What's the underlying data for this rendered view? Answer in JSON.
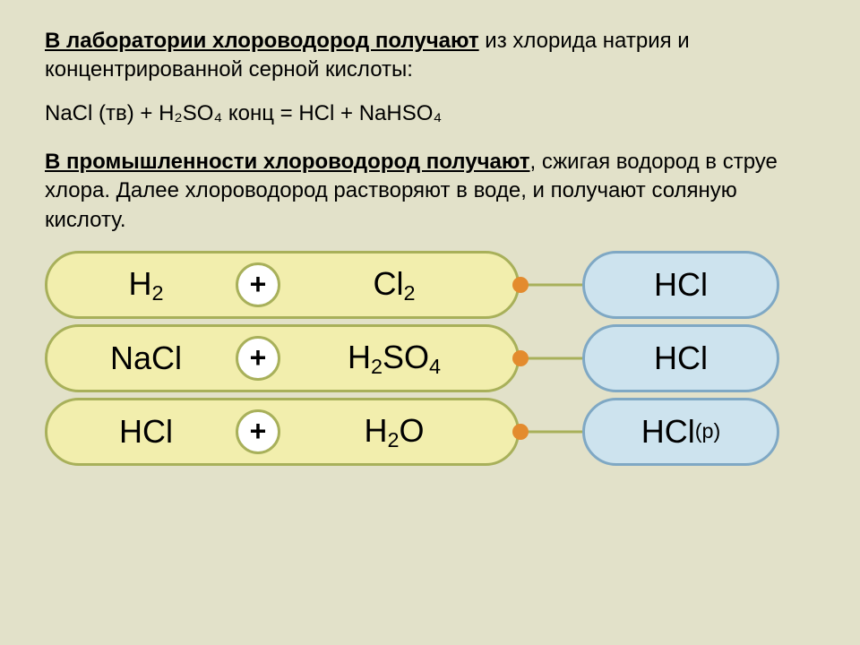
{
  "colors": {
    "slide_bg": "#e2e1c9",
    "text": "#000000",
    "pill_yellow_fill": "#f2eead",
    "pill_yellow_border": "#a8b05a",
    "pill_blue_fill": "#cde3ee",
    "pill_blue_border": "#7fa8c4",
    "plus_fill": "#ffffff",
    "plus_border": "#a8b05a",
    "connector": "#a8b05a",
    "dot": "#e38b2e",
    "arrow": "#7fa8c4"
  },
  "para1": {
    "lead_bold": "В лаборатории хлороводород получают",
    "rest": " из хлорида натрия и концентрированной серной кислоты:"
  },
  "equation": "NaCl (тв) + H₂SO₄ конц = HCl + NaHSO₄",
  "para2": {
    "lead_bold": "В промышленности хлороводород получают",
    "rest": ", сжигая водород в струе хлора. Далее хлороводород растворяют в воде, и получают соляную кислоту."
  },
  "reactions": [
    {
      "a": "H",
      "a_sub": "2",
      "b": "Cl",
      "b_sub": "2",
      "p": "HCl",
      "p_suffix": ""
    },
    {
      "a": "NaCl",
      "a_sub": "",
      "b": "H",
      "b_sub": "2",
      "b2": "SO",
      "b2_sub": "4",
      "p": "HCl",
      "p_suffix": ""
    },
    {
      "a": "HCl",
      "a_sub": "",
      "b": "H",
      "b_sub": "2",
      "b2": "O",
      "b2_sub": "",
      "p": "HCl",
      "p_suffix": "(р)"
    }
  ]
}
